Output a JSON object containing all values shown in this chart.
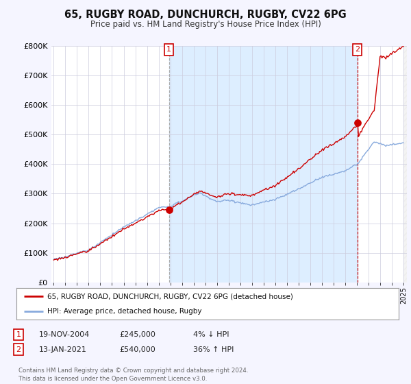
{
  "title": "65, RUGBY ROAD, DUNCHURCH, RUGBY, CV22 6PG",
  "subtitle": "Price paid vs. HM Land Registry's House Price Index (HPI)",
  "legend_line1": "65, RUGBY ROAD, DUNCHURCH, RUGBY, CV22 6PG (detached house)",
  "legend_line2": "HPI: Average price, detached house, Rugby",
  "annotation1_date": "19-NOV-2004",
  "annotation1_price": "£245,000",
  "annotation1_pct": "4% ↓ HPI",
  "annotation2_date": "13-JAN-2021",
  "annotation2_price": "£540,000",
  "annotation2_pct": "36% ↑ HPI",
  "footer": "Contains HM Land Registry data © Crown copyright and database right 2024.\nThis data is licensed under the Open Government Licence v3.0.",
  "price_color": "#cc0000",
  "hpi_color": "#88aadd",
  "shade_color": "#ddeeff",
  "background_color": "#f5f5ff",
  "plot_bg_color": "#ffffff",
  "ylim": [
    0,
    800000
  ],
  "yticks": [
    0,
    100000,
    200000,
    300000,
    400000,
    500000,
    600000,
    700000,
    800000
  ],
  "sale1_x": 2004.88,
  "sale1_y": 245000,
  "sale2_x": 2021.04,
  "sale2_y": 540000,
  "xmin": 1995.0,
  "xmax": 2025.0
}
